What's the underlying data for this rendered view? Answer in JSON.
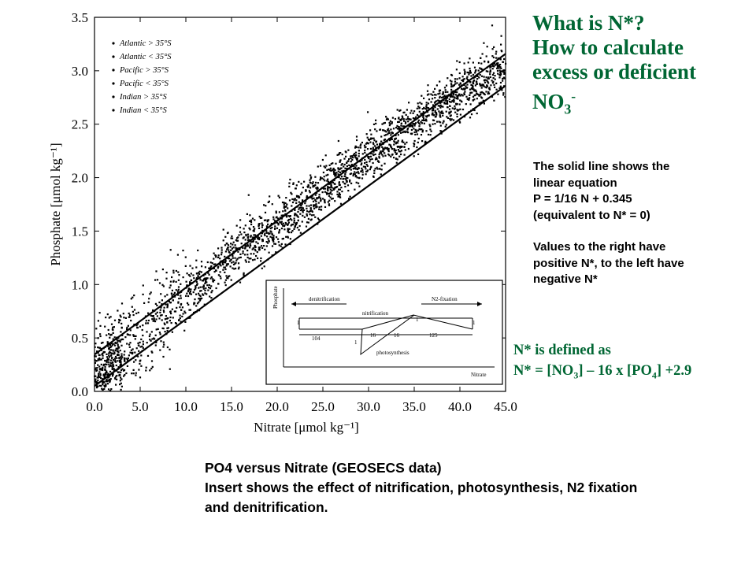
{
  "title": {
    "line1": "What is N*?",
    "line2": "How to calculate",
    "line3": "excess or deficient",
    "line4_main": "NO",
    "line4_sub": "3",
    "line4_sup": "-"
  },
  "note": {
    "line1": "The solid line shows the",
    "line2": "linear equation",
    "line3": "P = 1/16 N + 0.345",
    "line4": "(equivalent to N* = 0)",
    "line5": "Values to the right have",
    "line6": "positive N*, to the left have",
    "line7": "negative N*"
  },
  "definition": {
    "line1": "N* is defined as",
    "line2_a": "N* = [NO",
    "line2_sub1": "3",
    "line2_b": "] – 16 x [PO",
    "line2_sub2": "4",
    "line2_c": "] +2.9"
  },
  "caption": {
    "line1": "PO4 versus Nitrate (GEOSECS data)",
    "line2": "Insert shows the effect of nitrification, photosynthesis, N2 fixation",
    "line3": "and denitrification."
  },
  "inset": {
    "ylabel": "Phosphate",
    "xlabel": "Nitrate",
    "denitrification": "denitrification",
    "nitrification": "nitrification",
    "n2_fixation": "N2-fixation",
    "photosynthesis": "photosynthesis",
    "label_left": "104",
    "label_16a": "16",
    "label_16b": "16",
    "label_125": "125",
    "label_1a": "1",
    "label_1b": "1",
    "label_1c": "1",
    "label_1d": "1"
  },
  "colors": {
    "title_green": "#006633",
    "text": "#000000"
  },
  "chart_data": {
    "type": "scatter",
    "xlabel": "Nitrate [μmol kg⁻¹]",
    "ylabel": "Phosphate [μmol kg⁻¹]",
    "xlim": [
      0,
      45
    ],
    "ylim": [
      0,
      3.5
    ],
    "xticks": [
      "0.0",
      "5.0",
      "10.0",
      "15.0",
      "20.0",
      "25.0",
      "30.0",
      "35.0",
      "40.0",
      "45.0"
    ],
    "yticks": [
      "0.0",
      "0.5",
      "1.0",
      "1.5",
      "2.0",
      "2.5",
      "3.0",
      "3.5"
    ],
    "legend_position": "top-left",
    "series": [
      {
        "name": "Atlantic > 35°S",
        "marker": "dot"
      },
      {
        "name": "Atlantic < 35°S",
        "marker": "dot"
      },
      {
        "name": "Pacific > 35°S",
        "marker": "dot"
      },
      {
        "name": "Pacific < 35°S",
        "marker": "dot"
      },
      {
        "name": "Indian > 35°S",
        "marker": "dot"
      },
      {
        "name": "Indian < 35°S",
        "marker": "dot"
      }
    ],
    "point_cloud": {
      "description_points": [
        [
          0,
          0.1
        ],
        [
          5,
          0.55
        ],
        [
          10,
          0.9
        ],
        [
          15,
          1.25
        ],
        [
          20,
          1.55
        ],
        [
          25,
          1.9
        ],
        [
          30,
          2.2
        ],
        [
          35,
          2.5
        ],
        [
          40,
          2.8
        ],
        [
          45,
          3.05
        ]
      ],
      "spread": 0.12
    },
    "lines": [
      {
        "label": "P = 1/16 N + 0.345",
        "x": [
          0,
          45
        ],
        "y": [
          0.345,
          3.158
        ]
      },
      {
        "x": [
          0,
          45
        ],
        "y": [
          0.05,
          2.86
        ]
      }
    ]
  }
}
